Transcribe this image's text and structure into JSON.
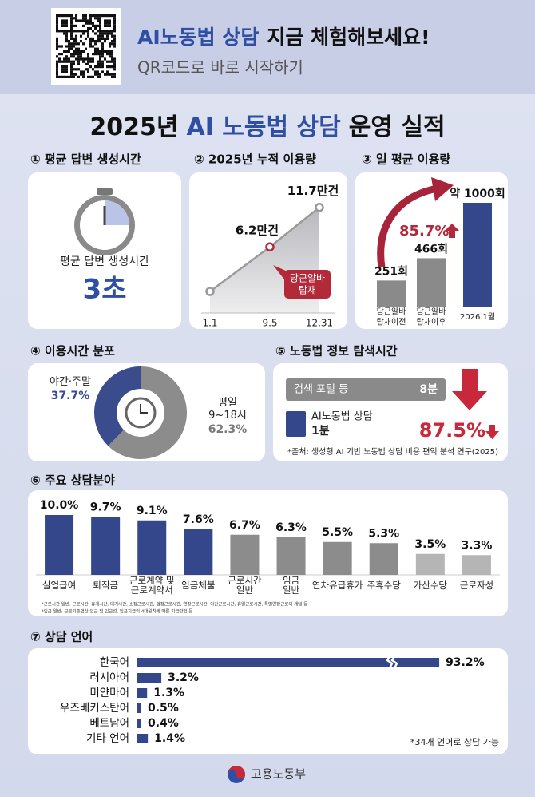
{
  "header": {
    "headline_highlight": "AI노동법 상담",
    "headline_rest": "지금 체험해보세요!",
    "subline": "QR코드로 바로 시작하기"
  },
  "title": {
    "year": "2025년",
    "highlight": "AI 노동법 상담",
    "rest": "운영 실적"
  },
  "response_time": {
    "heading": "① 평균 답변 생성시간",
    "label": "평균 답변 생성시간",
    "value_label": "3초"
  },
  "cumulative": {
    "heading": "② 2025년 누적 이용량",
    "x": [
      "1.1",
      "9.5",
      "12.31"
    ],
    "values": [
      0,
      6.2,
      11.7
    ],
    "value_labels": [
      null,
      "6.2만건",
      "11.7만건"
    ],
    "annotation": "당근알바\n탑재"
  },
  "daily": {
    "heading": "③ 일 평균 이용량",
    "categories": [
      "당근알바\n탑재이전",
      "당근알바\n탑재이후",
      "2026.1월"
    ],
    "values": [
      251,
      466,
      1000
    ],
    "value_labels": [
      "251회",
      "466회",
      "약 1000회"
    ],
    "colors": [
      "#8a8a8a",
      "#8a8a8a",
      "#33478a"
    ],
    "growth": "85.7%"
  },
  "usage_time": {
    "heading": "④ 이용시간 분포",
    "categories": [
      "야간·주말",
      "평일\n9~18시"
    ],
    "values": [
      37.7,
      62.3
    ],
    "value_labels": [
      "37.7%",
      "62.3%"
    ],
    "colors": [
      "#3a4c8c",
      "#8c8c8c"
    ]
  },
  "search_time": {
    "heading": "⑤ 노동법 정보 탐색시간",
    "categories": [
      "검색 포털 등",
      "AI노동법 상담"
    ],
    "values": [
      8,
      1
    ],
    "value_labels": [
      "8분",
      "1분"
    ],
    "colors": [
      "#8a8a8a",
      "#33478a"
    ],
    "reduction": "87.5%",
    "note": "*출처: 생성형 AI 기반 노동법 상담 비용 편익 분석 연구(2025)"
  },
  "fields": {
    "heading": "⑥ 주요 상담분야",
    "categories": [
      "실업급여",
      "퇴직금",
      "근로계약 및\n근로계약서",
      "임금체불",
      "근로시간\n일반",
      "임금\n일반",
      "연차유급휴가",
      "주휴수당",
      "가산수당",
      "근로자성"
    ],
    "values": [
      10.0,
      9.7,
      9.1,
      7.6,
      6.7,
      6.3,
      5.5,
      5.3,
      3.5,
      3.3
    ],
    "value_labels": [
      "10.0%",
      "9.7%",
      "9.1%",
      "7.6%",
      "6.7%",
      "6.3%",
      "5.5%",
      "5.3%",
      "3.5%",
      "3.3%"
    ],
    "colors": [
      "#33478a",
      "#33478a",
      "#33478a",
      "#33478a",
      "#8c8c8c",
      "#8c8c8c",
      "#8c8c8c",
      "#8c8c8c",
      "#b5b5b5",
      "#b5b5b5"
    ],
    "footnotes": [
      "*근로시간 일반: 근로시간, 휴게시간, 대기시간, 소정근로시간, 법정근로시간, 연장근로시간, 야간근로시간, 휴일근로시간, 특별연장근로의 개념 등",
      "*임금 일반: 근로기준법상 임금 및 임금성, 임금지급의 4대원칙에 따른 지급방법 등"
    ]
  },
  "languages": {
    "heading": "⑦ 상담 언어",
    "categories": [
      "한국어",
      "러시아어",
      "미얀마어",
      "우즈베키스탄어",
      "베트남어",
      "기타 언어"
    ],
    "values": [
      93.2,
      3.2,
      1.3,
      0.5,
      0.4,
      1.4
    ],
    "value_labels": [
      "93.2%",
      "3.2%",
      "1.3%",
      "0.5%",
      "0.4%",
      "1.4%"
    ],
    "color": "#33478a",
    "note": "*34개 언어로 상담 가능"
  },
  "footer": {
    "ministry": "고용노동부"
  }
}
